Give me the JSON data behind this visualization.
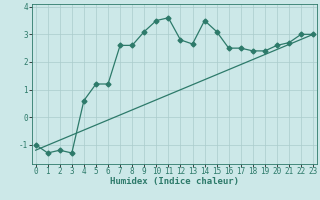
{
  "title": "",
  "xlabel": "Humidex (Indice chaleur)",
  "ylabel": "",
  "background_color": "#cce8e8",
  "line_color": "#2d7a6a",
  "grid_color": "#aacccc",
  "curve_x": [
    0,
    1,
    2,
    3,
    4,
    5,
    6,
    7,
    8,
    9,
    10,
    11,
    12,
    13,
    14,
    15,
    16,
    17,
    18,
    19,
    20,
    21,
    22,
    23
  ],
  "curve_y": [
    -1.0,
    -1.3,
    -1.2,
    -1.3,
    0.6,
    1.2,
    1.2,
    2.6,
    2.6,
    3.1,
    3.5,
    3.6,
    2.8,
    2.65,
    3.5,
    3.1,
    2.5,
    2.5,
    2.4,
    2.4,
    2.6,
    2.7,
    3.0,
    3.0
  ],
  "line_x": [
    0,
    23
  ],
  "line_y": [
    -1.2,
    3.0
  ],
  "ylim": [
    -1.7,
    4.1
  ],
  "xlim": [
    -0.3,
    23.3
  ],
  "yticks": [
    -1,
    0,
    1,
    2,
    3,
    4
  ],
  "xticks": [
    0,
    1,
    2,
    3,
    4,
    5,
    6,
    7,
    8,
    9,
    10,
    11,
    12,
    13,
    14,
    15,
    16,
    17,
    18,
    19,
    20,
    21,
    22,
    23
  ],
  "tick_fontsize": 5.5,
  "label_fontsize": 6.5,
  "marker": "D",
  "markersize": 2.5,
  "linewidth": 0.9
}
